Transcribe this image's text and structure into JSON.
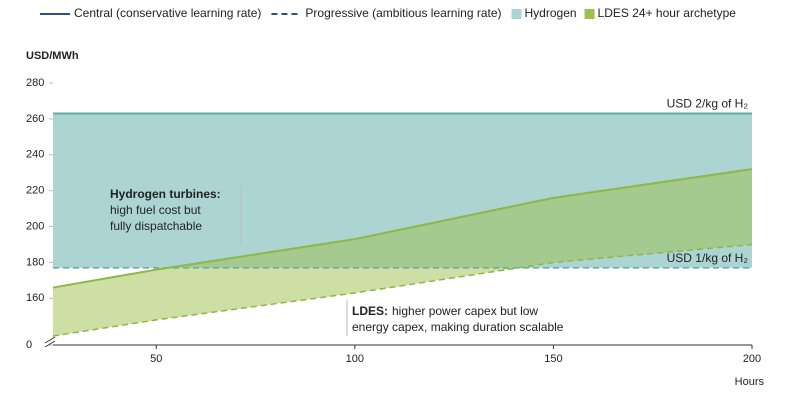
{
  "chart_data": {
    "type": "band",
    "y_label": "USD/MWh",
    "x_label": "Hours",
    "x": [
      24,
      50,
      100,
      150,
      200
    ],
    "xlim": [
      24,
      200
    ],
    "xticks": [
      50,
      100,
      150,
      200
    ],
    "ylim": [
      0,
      280
    ],
    "ybreak": [
      0,
      134
    ],
    "yticks": [
      0,
      160,
      180,
      200,
      220,
      240,
      260,
      280
    ],
    "line_styles": [
      {
        "name": "Central (conservative learning rate)",
        "dash": false
      },
      {
        "name": "Progressive (ambitious learning rate)",
        "dash": true
      }
    ],
    "legend_color": "#2f4f80",
    "series": [
      {
        "name": "Hydrogen",
        "color": "#5eaca7",
        "fill": "#acd4d3",
        "central": [
          263,
          263,
          263,
          263,
          263
        ],
        "progressive": [
          177,
          177,
          177,
          177,
          177
        ],
        "central_label": "USD 2/kg of H₂",
        "progressive_label": "USD 1/kg of H₂"
      },
      {
        "name": "LDES 24+ hour archetype",
        "color": "#8db843",
        "fill": "#9dc04e",
        "central": [
          166,
          176,
          193,
          216,
          232
        ],
        "progressive": [
          139,
          148,
          163,
          180,
          190
        ]
      }
    ],
    "annotations": [
      {
        "bold": "Hydrogen turbines:",
        "lines": [
          "high fuel cost but",
          "fully dispatchable"
        ]
      },
      {
        "bold": "LDES:",
        "lines": [
          "higher power capex but low",
          "energy capex, making duration scalable"
        ]
      }
    ]
  }
}
